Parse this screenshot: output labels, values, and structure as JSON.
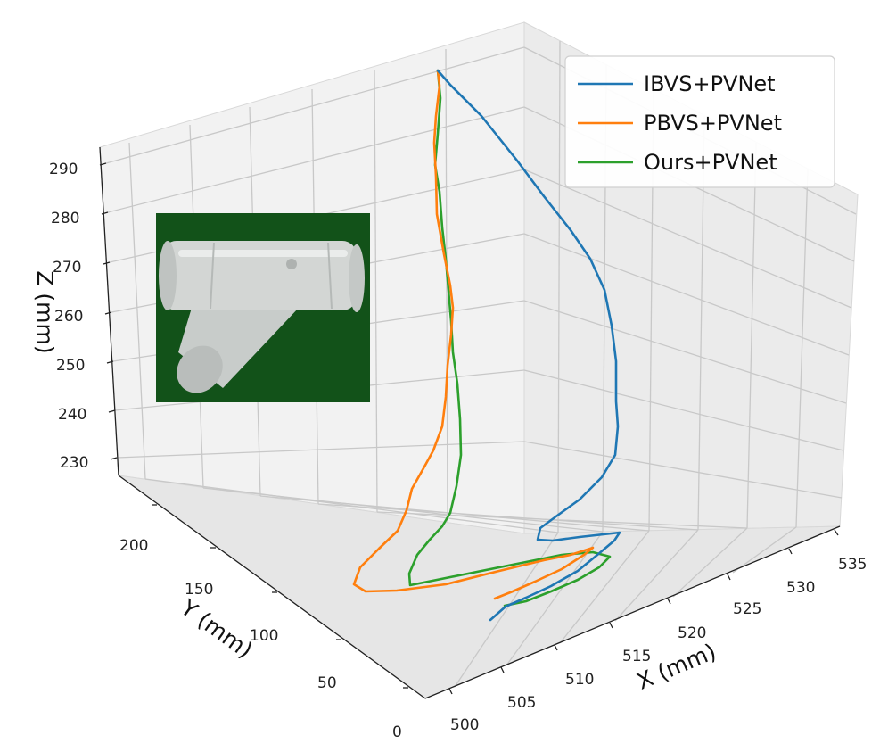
{
  "chart_data": {
    "type": "line",
    "projection": "3d",
    "xlabel": "X (mm)",
    "ylabel": "Y (mm)",
    "zlabel": "Z (mm)",
    "xticks": [
      "500",
      "505",
      "510",
      "515",
      "520",
      "525",
      "530",
      "535"
    ],
    "yticks": [
      "0",
      "50",
      "100",
      "150",
      "200"
    ],
    "zticks": [
      "230",
      "240",
      "250",
      "260",
      "270",
      "280",
      "290"
    ],
    "grid": true,
    "legend": {
      "position": "top-right",
      "entries": [
        "IBVS+PVNet",
        "PBVS+PVNet",
        "Ours+PVNet"
      ]
    },
    "series": [
      {
        "name": "IBVS+PVNet",
        "color": "#1f77b4",
        "points_projected_order": "start-to-end",
        "note_values_approximate": true,
        "path": [
          [
            491,
            79
          ],
          [
            505,
            95
          ],
          [
            540,
            130
          ],
          [
            580,
            180
          ],
          [
            610,
            220
          ],
          [
            640,
            258
          ],
          [
            662,
            290
          ],
          [
            678,
            325
          ],
          [
            686,
            365
          ],
          [
            691,
            405
          ],
          [
            691,
            450
          ],
          [
            693,
            478
          ],
          [
            690,
            510
          ],
          [
            675,
            535
          ],
          [
            650,
            560
          ],
          [
            625,
            578
          ],
          [
            606,
            592
          ],
          [
            603,
            605
          ],
          [
            620,
            606
          ],
          [
            650,
            602
          ],
          [
            677,
            599
          ],
          [
            695,
            597
          ],
          [
            689,
            606
          ],
          [
            670,
            622
          ],
          [
            648,
            640
          ],
          [
            618,
            657
          ],
          [
            590,
            670
          ],
          [
            567,
            680
          ],
          [
            550,
            695
          ]
        ]
      },
      {
        "name": "PBVS+PVNet",
        "color": "#ff7f0e",
        "path": [
          [
            491,
            79
          ],
          [
            493,
            96
          ],
          [
            489,
            130
          ],
          [
            487,
            160
          ],
          [
            489,
            198
          ],
          [
            490,
            240
          ],
          [
            498,
            285
          ],
          [
            505,
            320
          ],
          [
            508,
            345
          ],
          [
            506,
            375
          ],
          [
            502,
            410
          ],
          [
            500,
            445
          ],
          [
            496,
            478
          ],
          [
            486,
            505
          ],
          [
            475,
            525
          ],
          [
            462,
            548
          ],
          [
            456,
            572
          ],
          [
            446,
            595
          ],
          [
            425,
            615
          ],
          [
            404,
            636
          ],
          [
            397,
            655
          ],
          [
            410,
            663
          ],
          [
            445,
            662
          ],
          [
            500,
            655
          ],
          [
            560,
            640
          ],
          [
            610,
            628
          ],
          [
            640,
            622
          ],
          [
            665,
            614
          ],
          [
            655,
            622
          ],
          [
            630,
            638
          ],
          [
            600,
            652
          ],
          [
            575,
            663
          ],
          [
            555,
            671
          ]
        ]
      },
      {
        "name": "Ours+PVNet",
        "color": "#2ca02c",
        "path": [
          [
            491,
            79
          ],
          [
            494,
            110
          ],
          [
            491,
            150
          ],
          [
            488,
            185
          ],
          [
            493,
            215
          ],
          [
            496,
            255
          ],
          [
            500,
            290
          ],
          [
            503,
            325
          ],
          [
            506,
            360
          ],
          [
            508,
            395
          ],
          [
            513,
            430
          ],
          [
            516,
            470
          ],
          [
            517,
            510
          ],
          [
            512,
            545
          ],
          [
            505,
            575
          ],
          [
            496,
            590
          ],
          [
            482,
            605
          ],
          [
            468,
            622
          ],
          [
            459,
            643
          ],
          [
            460,
            656
          ],
          [
            490,
            650
          ],
          [
            540,
            640
          ],
          [
            590,
            630
          ],
          [
            630,
            622
          ],
          [
            665,
            619
          ],
          [
            684,
            624
          ],
          [
            672,
            636
          ],
          [
            648,
            650
          ],
          [
            618,
            663
          ],
          [
            590,
            674
          ],
          [
            566,
            679
          ]
        ]
      }
    ],
    "inset_image": "photo of a white PVC wye pipe fitting on a green background"
  }
}
